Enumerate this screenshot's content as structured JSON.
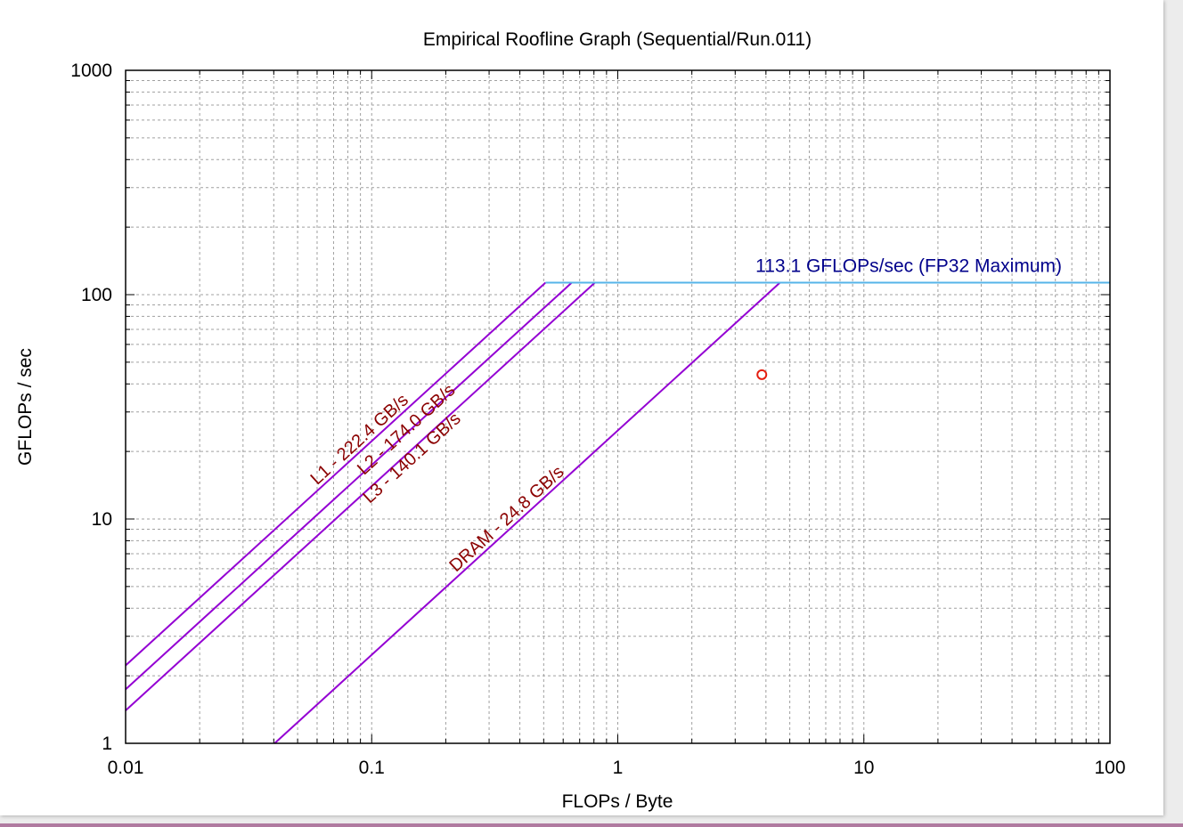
{
  "chart_data": {
    "type": "line",
    "title": "Empirical Roofline Graph (Sequential/Run.011)",
    "xlabel": "FLOPs / Byte",
    "ylabel": "GFLOPs / sec",
    "xscale": "log",
    "yscale": "log",
    "xlim": [
      0.01,
      100
    ],
    "ylim": [
      1,
      1000
    ],
    "xticks": [
      "0.01",
      "0.1",
      "1",
      "10",
      "100"
    ],
    "yticks": [
      "1",
      "10",
      "100",
      "1000"
    ],
    "grid": true,
    "colors": {
      "bandwidth_line": "#9400d3",
      "compute_ceiling": "#56b4e9",
      "bandwidth_label": "#8b0000",
      "ceiling_label": "#00008b",
      "point": "#e51e10"
    },
    "compute_ceiling": {
      "gflops": 113.1,
      "label": "113.1 GFLOPs/sec (FP32 Maximum)"
    },
    "bandwidth_ceilings": [
      {
        "name": "L1",
        "gbps": 222.4,
        "label": "L1 - 222.4 GB/s"
      },
      {
        "name": "L2",
        "gbps": 174.0,
        "label": "L2 - 174.0 GB/s"
      },
      {
        "name": "L3",
        "gbps": 140.1,
        "label": "L3 - 140.1 GB/s"
      },
      {
        "name": "DRAM",
        "gbps": 24.8,
        "label": "DRAM - 24.8 GB/s"
      }
    ],
    "points": [
      {
        "x": 3.85,
        "y": 44
      }
    ]
  }
}
